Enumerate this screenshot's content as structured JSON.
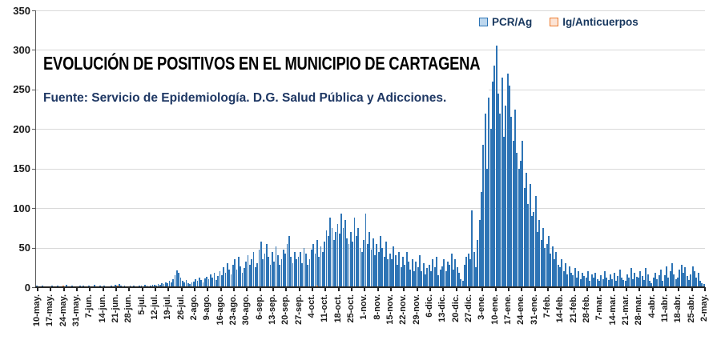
{
  "chart_data": {
    "type": "bar",
    "title": "EVOLUCIÓN DE POSITIVOS EN EL MUNICIPIO DE CARTAGENA",
    "subtitle": "Fuente: Servicio de Epidemiología. D.G. Salud Pública y Adicciones.",
    "ylabel": "",
    "xlabel": "",
    "ylim": [
      0,
      350
    ],
    "y_ticks": [
      0,
      50,
      100,
      150,
      200,
      250,
      300,
      350
    ],
    "grid": true,
    "grid_color": "#d9d9d9",
    "legend_position": "top-right",
    "legend": [
      {
        "name": "PCR/Ag",
        "fill": "#bdd7ee",
        "border": "#2e74b5"
      },
      {
        "name": "Ig/Anticuerpos",
        "fill": "#fce4d6",
        "border": "#ed7d31"
      }
    ],
    "bar_fill": "#2e74b5",
    "bar_edge": "#1f4e79",
    "ig_fill": "#ed7d31",
    "x_week_labels": [
      "10-may.",
      "17-may.",
      "24-may.",
      "31-may.",
      "7-jun.",
      "14-jun.",
      "21-jun.",
      "28-jun.",
      "5-jul.",
      "12-jul.",
      "19-jul.",
      "26-jul.",
      "2-ago.",
      "9-ago.",
      "16-ago.",
      "23-ago.",
      "30-ago.",
      "6-sep.",
      "13-sep.",
      "20-sep.",
      "27-sep.",
      "4-oct.",
      "11-oct.",
      "18-oct.",
      "25-oct.",
      "1-nov.",
      "8-nov.",
      "15-nov.",
      "22-nov.",
      "29-nov.",
      "6-dic.",
      "13-dic.",
      "20-dic.",
      "27-dic.",
      "3-ene.",
      "10-ene.",
      "17-ene.",
      "24-ene.",
      "31-ene.",
      "7-feb.",
      "14-feb.",
      "21-feb.",
      "28-feb.",
      "7-mar.",
      "14-mar.",
      "21-mar.",
      "28-mar.",
      "4-abr.",
      "11-abr.",
      "18-abr.",
      "25-abr.",
      "2-may."
    ],
    "series": [
      {
        "name": "PCR/Ag",
        "daily_values": [
          2,
          1,
          1,
          2,
          1,
          0,
          1,
          1,
          2,
          1,
          1,
          2,
          1,
          0,
          2,
          1,
          3,
          1,
          1,
          2,
          1,
          1,
          1,
          2,
          1,
          2,
          1,
          1,
          2,
          1,
          1,
          3,
          1,
          1,
          2,
          1,
          2,
          1,
          1,
          1,
          2,
          1,
          3,
          2,
          4,
          2,
          1,
          2,
          1,
          1,
          2,
          1,
          2,
          1,
          1,
          2,
          2,
          1,
          3,
          2,
          1,
          2,
          3,
          3,
          2,
          4,
          3,
          5,
          4,
          6,
          5,
          8,
          6,
          10,
          15,
          21,
          18,
          12,
          8,
          6,
          9,
          5,
          4,
          6,
          7,
          10,
          8,
          12,
          9,
          6,
          11,
          13,
          10,
          16,
          12,
          18,
          9,
          14,
          20,
          15,
          25,
          18,
          30,
          22,
          16,
          28,
          35,
          22,
          38,
          26,
          18,
          24,
          32,
          40,
          28,
          35,
          45,
          25,
          30,
          48,
          58,
          35,
          42,
          55,
          38,
          28,
          45,
          32,
          52,
          40,
          28,
          35,
          48,
          42,
          55,
          65,
          38,
          30,
          45,
          35,
          38,
          45,
          30,
          50,
          42,
          28,
          35,
          48,
          55,
          42,
          60,
          38,
          52,
          45,
          58,
          72,
          65,
          88,
          75,
          60,
          70,
          80,
          68,
          93,
          75,
          85,
          62,
          55,
          70,
          58,
          88,
          65,
          75,
          50,
          45,
          60,
          93,
          55,
          70,
          48,
          62,
          40,
          55,
          45,
          65,
          50,
          38,
          58,
          35,
          42,
          35,
          52,
          40,
          28,
          45,
          25,
          38,
          28,
          45,
          32,
          22,
          35,
          20,
          32,
          25,
          40,
          20,
          30,
          16,
          24,
          28,
          20,
          35,
          25,
          38,
          15,
          22,
          26,
          35,
          20,
          32,
          28,
          42,
          22,
          35,
          25,
          18,
          10,
          8,
          28,
          38,
          42,
          35,
          97,
          45,
          25,
          60,
          85,
          120,
          180,
          220,
          150,
          240,
          200,
          260,
          280,
          305,
          245,
          220,
          265,
          190,
          230,
          270,
          255,
          215,
          185,
          225,
          170,
          150,
          160,
          185,
          125,
          145,
          105,
          130,
          90,
          95,
          115,
          70,
          85,
          60,
          75,
          50,
          55,
          65,
          42,
          52,
          35,
          45,
          28,
          25,
          35,
          20,
          30,
          16,
          26,
          18,
          15,
          24,
          12,
          20,
          10,
          18,
          14,
          12,
          20,
          8,
          16,
          12,
          18,
          10,
          8,
          15,
          10,
          20,
          12,
          9,
          16,
          10,
          18,
          8,
          14,
          22,
          12,
          9,
          8,
          16,
          12,
          24,
          10,
          18,
          13,
          12,
          20,
          14,
          9,
          24,
          16,
          8,
          5,
          12,
          18,
          10,
          15,
          22,
          8,
          15,
          26,
          12,
          20,
          30,
          16,
          10,
          12,
          22,
          28,
          18,
          25,
          14,
          9,
          16,
          26,
          20,
          12,
          18,
          8,
          5,
          4
        ]
      },
      {
        "name": "Ig/Anticuerpos",
        "daily_values_sparse": {
          "10": 1,
          "14": 2,
          "21": 1,
          "34": 1,
          "43": 2,
          "150": 2,
          "163": 1,
          "175": 1
        }
      }
    ]
  }
}
